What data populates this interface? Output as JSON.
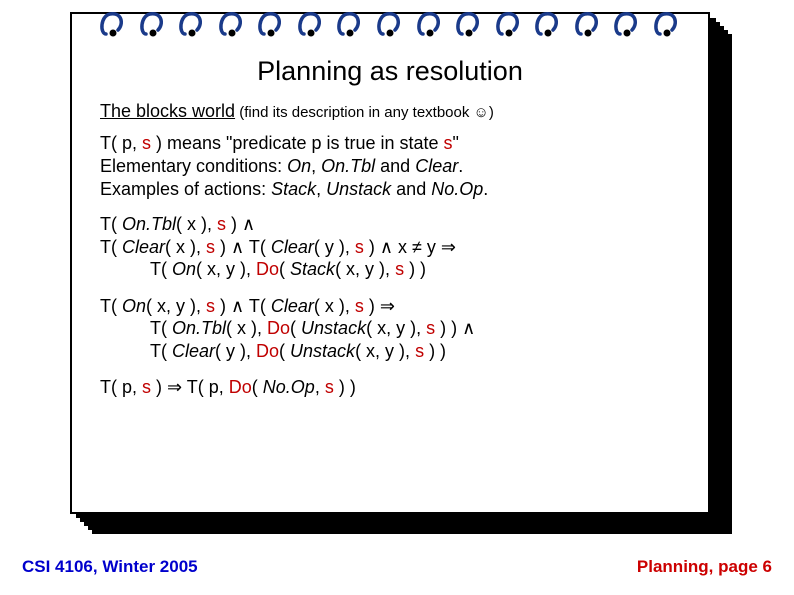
{
  "title": "Planning as resolution",
  "subtitle_underlined": "The blocks world",
  "subtitle_small": " (find its description in any textbook ☺)",
  "para_lines": {
    "l1a": "T( p, ",
    "l1b": "s",
    "l1c": " ) means \"predicate p is true in state ",
    "l1d": "s",
    "l1e": "\"",
    "l2a": "Elementary conditions: ",
    "l2b": "On",
    "l2c": ", ",
    "l2d": "On.Tbl",
    "l2e": " and ",
    "l2f": "Clear",
    "l2g": ".",
    "l3a": "Examples of actions: ",
    "l3b": "Stack",
    "l3c": ", ",
    "l3d": "Unstack",
    "l3e": " and ",
    "l3f": "No.Op",
    "l3g": "."
  },
  "block1": {
    "l1a": "T( ",
    "l1b": "On.Tbl",
    "l1c": "( x ), ",
    "l1d": "s",
    "l1e": " ) ∧",
    "l2a": "T( ",
    "l2b": "Clear",
    "l2c": "( x ), ",
    "l2d": "s",
    "l2e": " ) ∧ T( ",
    "l2f": "Clear",
    "l2g": "( y ), ",
    "l2h": "s",
    "l2i": " ) ∧ x ≠ y ⇒",
    "l3a": "T( ",
    "l3b": "On",
    "l3c": "( x, y ), ",
    "l3d": "Do",
    "l3e": "( ",
    "l3f": "Stack",
    "l3g": "( x, y ), ",
    "l3h": "s",
    "l3i": " ) )"
  },
  "block2": {
    "l1a": "T( ",
    "l1b": "On",
    "l1c": "( x, y ), ",
    "l1d": "s",
    "l1e": " ) ∧ T( ",
    "l1f": "Clear",
    "l1g": "( x ), ",
    "l1h": "s",
    "l1i": " ) ⇒",
    "l2a": "T( ",
    "l2b": "On.Tbl",
    "l2c": "( x ), ",
    "l2d": "Do",
    "l2e": "( ",
    "l2f": "Unstack",
    "l2g": "( x, y ), ",
    "l2h": "s",
    "l2i": " ) ) ∧",
    "l3a": "T( ",
    "l3b": "Clear",
    "l3c": "( y ), ",
    "l3d": "Do",
    "l3e": "( ",
    "l3f": "Unstack",
    "l3g": "( x, y ), ",
    "l3h": "s",
    "l3i": " ) )"
  },
  "block3": {
    "a": "T( p, ",
    "b": "s",
    "c": " ) ⇒ T( p, ",
    "d": "Do",
    "e": "( ",
    "f": "No.Op",
    "g": ", ",
    "h": "s",
    "i": " ) )"
  },
  "footer_left": "CSI 4106, Winter 2005",
  "footer_right": "Planning, page 6",
  "colors": {
    "text": "#000000",
    "state_red": "#c00000",
    "footer_blue": "#0000cc",
    "footer_red": "#cc0000",
    "ring_blue": "#1a3a8a"
  },
  "spiral_count": 15
}
